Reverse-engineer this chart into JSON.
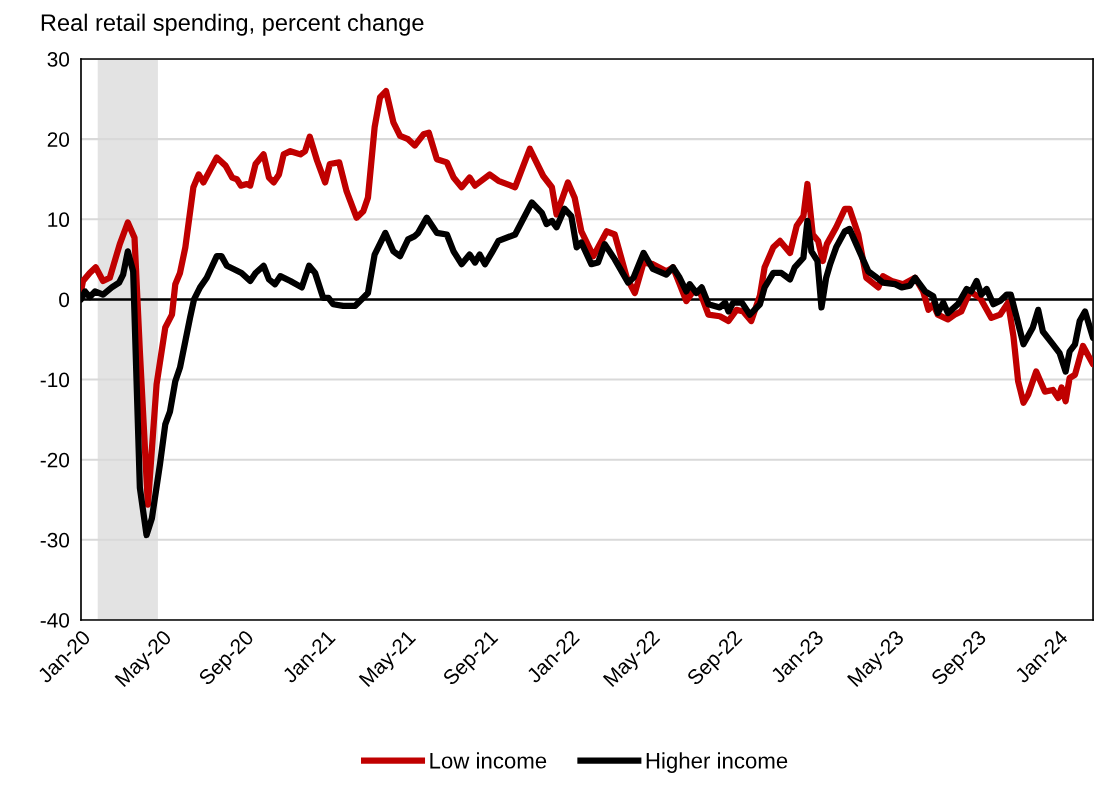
{
  "chart_data": {
    "type": "line",
    "title": "Real retail spending, percent change",
    "xlim": [
      "2020-01-01",
      "2024-02-22"
    ],
    "xticks": [
      {
        "value": "2020-01-01",
        "label": "Jan-20"
      },
      {
        "value": "2020-05-01",
        "label": "May-20"
      },
      {
        "value": "2020-09-01",
        "label": "Sep-20"
      },
      {
        "value": "2021-01-01",
        "label": "Jan-21"
      },
      {
        "value": "2021-05-01",
        "label": "May-21"
      },
      {
        "value": "2021-09-01",
        "label": "Sep-21"
      },
      {
        "value": "2022-01-01",
        "label": "Jan-22"
      },
      {
        "value": "2022-05-01",
        "label": "May-22"
      },
      {
        "value": "2022-09-01",
        "label": "Sep-22"
      },
      {
        "value": "2023-01-01",
        "label": "Jan-23"
      },
      {
        "value": "2023-05-01",
        "label": "May-23"
      },
      {
        "value": "2023-09-01",
        "label": "Sep-23"
      },
      {
        "value": "2024-01-01",
        "label": "Jan-24"
      }
    ],
    "ylim": [
      -40,
      30
    ],
    "yticks": [
      -40,
      -30,
      -20,
      -10,
      0,
      10,
      20,
      30
    ],
    "grid": "y",
    "legend": "bottom",
    "marker": "none",
    "line_style": "solid",
    "bands": [
      {
        "axis": "x",
        "from": "2020-01-26",
        "to": "2020-04-25",
        "color": "#e3e3e3"
      }
    ],
    "ref_lines": [
      {
        "axis": "y",
        "value": 0,
        "color": "#000000"
      }
    ],
    "series": [
      {
        "name": "Low income",
        "color": "#c00000",
        "x": [
          "2020-01-01",
          "2020-01-04",
          "2020-01-14",
          "2020-01-23",
          "2020-02-03",
          "2020-02-13",
          "2020-02-28",
          "2020-03-11",
          "2020-03-21",
          "2020-03-29",
          "2020-04-10",
          "2020-04-23",
          "2020-05-06",
          "2020-05-16",
          "2020-05-21",
          "2020-05-28",
          "2020-06-05",
          "2020-06-17",
          "2020-06-25",
          "2020-07-02",
          "2020-07-22",
          "2020-08-04",
          "2020-08-14",
          "2020-08-21",
          "2020-08-27",
          "2020-09-05",
          "2020-09-10",
          "2020-09-18",
          "2020-09-30",
          "2020-10-08",
          "2020-10-15",
          "2020-10-23",
          "2020-10-30",
          "2020-11-09",
          "2020-11-24",
          "2020-12-01",
          "2020-12-08",
          "2020-12-19",
          "2020-12-31",
          "2021-01-07",
          "2021-01-21",
          "2021-02-01",
          "2021-02-16",
          "2021-02-26",
          "2021-03-05",
          "2021-03-15",
          "2021-03-23",
          "2021-04-01",
          "2021-04-12",
          "2021-04-22",
          "2021-05-04",
          "2021-05-14",
          "2021-05-27",
          "2021-06-04",
          "2021-06-16",
          "2021-07-01",
          "2021-07-11",
          "2021-07-23",
          "2021-08-04",
          "2021-08-12",
          "2021-09-03",
          "2021-09-16",
          "2021-10-11",
          "2021-11-02",
          "2021-11-22",
          "2021-12-05",
          "2021-12-12",
          "2021-12-29",
          "2022-01-08",
          "2022-01-18",
          "2022-02-05",
          "2022-02-25",
          "2022-03-09",
          "2022-03-27",
          "2022-04-08",
          "2022-04-21",
          "2022-05-05",
          "2022-05-25",
          "2022-06-04",
          "2022-06-14",
          "2022-06-24",
          "2022-07-04",
          "2022-07-14",
          "2022-07-27",
          "2022-08-13",
          "2022-08-26",
          "2022-09-07",
          "2022-09-17",
          "2022-09-29",
          "2022-10-12",
          "2022-10-19",
          "2022-11-01",
          "2022-11-11",
          "2022-11-26",
          "2022-12-06",
          "2022-12-16",
          "2022-12-22",
          "2022-12-30",
          "2023-01-07",
          "2023-01-14",
          "2023-01-20",
          "2023-02-03",
          "2023-02-16",
          "2023-02-23",
          "2023-03-08",
          "2023-03-20",
          "2023-04-07",
          "2023-04-14",
          "2023-04-27",
          "2023-05-14",
          "2023-06-01",
          "2023-06-13",
          "2023-06-21",
          "2023-06-28",
          "2023-07-05",
          "2023-07-20",
          "2023-07-30",
          "2023-08-09",
          "2023-08-22",
          "2023-09-06",
          "2023-09-23",
          "2023-10-06",
          "2023-10-18",
          "2023-10-26",
          "2023-11-02",
          "2023-11-10",
          "2023-11-17",
          "2023-11-29",
          "2023-12-12",
          "2023-12-24",
          "2024-01-01",
          "2024-01-06",
          "2024-01-12",
          "2024-01-18",
          "2024-01-26",
          "2024-02-07",
          "2024-02-22"
        ],
        "values": [
          1.0,
          2.3,
          3.3,
          4.0,
          2.3,
          2.7,
          6.9,
          9.6,
          7.7,
          -6.5,
          -25.6,
          -10.6,
          -3.5,
          -1.9,
          1.9,
          3.3,
          6.5,
          14.0,
          15.6,
          14.6,
          17.7,
          16.7,
          15.2,
          15.0,
          14.2,
          14.4,
          14.2,
          16.9,
          18.1,
          15.2,
          14.6,
          15.6,
          18.1,
          18.5,
          18.1,
          18.5,
          20.3,
          17.3,
          14.6,
          16.9,
          17.1,
          13.5,
          10.2,
          11.0,
          12.7,
          21.5,
          25.2,
          26.0,
          22.1,
          20.4,
          20.0,
          19.2,
          20.6,
          20.8,
          17.5,
          17.1,
          15.2,
          14.0,
          15.2,
          14.2,
          15.6,
          14.8,
          14.0,
          18.8,
          15.4,
          14.0,
          10.6,
          14.6,
          12.7,
          8.5,
          5.4,
          8.5,
          8.1,
          2.7,
          0.8,
          4.6,
          4.4,
          3.5,
          4.0,
          1.9,
          -0.2,
          1.0,
          1.0,
          -1.9,
          -2.1,
          -2.7,
          -1.3,
          -1.5,
          -2.7,
          0.5,
          4.0,
          6.5,
          7.3,
          5.8,
          9.2,
          10.4,
          14.4,
          8.1,
          7.3,
          4.8,
          6.9,
          9.0,
          11.3,
          11.3,
          8.1,
          2.7,
          1.5,
          2.9,
          2.3,
          1.9,
          2.7,
          1.0,
          -1.3,
          -0.6,
          -1.9,
          -2.5,
          -1.9,
          -1.5,
          1.0,
          0.2,
          -2.3,
          -1.9,
          -0.4,
          -4.6,
          -10.2,
          -12.9,
          -11.9,
          -9.0,
          -11.5,
          -11.3,
          -12.3,
          -11.0,
          -12.7,
          -9.8,
          -9.4,
          -5.8,
          -8.1
        ]
      },
      {
        "name": "Higher income",
        "color": "#000000",
        "x": [
          "2020-01-01",
          "2020-01-07",
          "2020-01-14",
          "2020-01-22",
          "2020-02-03",
          "2020-02-16",
          "2020-02-27",
          "2020-03-04",
          "2020-03-11",
          "2020-03-19",
          "2020-03-29",
          "2020-04-08",
          "2020-04-16",
          "2020-04-28",
          "2020-05-06",
          "2020-05-13",
          "2020-05-21",
          "2020-05-28",
          "2020-06-05",
          "2020-06-12",
          "2020-06-18",
          "2020-06-27",
          "2020-07-07",
          "2020-07-22",
          "2020-07-29",
          "2020-08-06",
          "2020-08-16",
          "2020-08-28",
          "2020-09-10",
          "2020-09-18",
          "2020-09-30",
          "2020-10-08",
          "2020-10-17",
          "2020-10-25",
          "2020-11-09",
          "2020-11-26",
          "2020-12-07",
          "2020-12-16",
          "2020-12-28",
          "2021-01-05",
          "2021-01-12",
          "2021-01-27",
          "2021-02-14",
          "2021-02-26",
          "2021-03-05",
          "2021-03-15",
          "2021-03-31",
          "2021-04-12",
          "2021-04-22",
          "2021-05-04",
          "2021-05-14",
          "2021-05-19",
          "2021-06-01",
          "2021-06-16",
          "2021-07-01",
          "2021-07-11",
          "2021-07-23",
          "2021-08-04",
          "2021-08-12",
          "2021-08-19",
          "2021-08-27",
          "2021-09-06",
          "2021-09-16",
          "2021-10-11",
          "2021-11-05",
          "2021-11-20",
          "2021-11-27",
          "2021-12-05",
          "2021-12-12",
          "2021-12-24",
          "2022-01-03",
          "2022-01-11",
          "2022-01-18",
          "2022-02-02",
          "2022-02-12",
          "2022-02-22",
          "2022-03-09",
          "2022-03-29",
          "2022-04-06",
          "2022-04-21",
          "2022-05-05",
          "2022-05-25",
          "2022-06-04",
          "2022-06-14",
          "2022-06-24",
          "2022-06-29",
          "2022-07-09",
          "2022-07-17",
          "2022-07-27",
          "2022-08-13",
          "2022-08-21",
          "2022-08-26",
          "2022-09-02",
          "2022-09-15",
          "2022-09-27",
          "2022-10-12",
          "2022-10-19",
          "2022-11-01",
          "2022-11-13",
          "2022-11-26",
          "2022-12-03",
          "2022-12-16",
          "2022-12-22",
          "2022-12-28",
          "2023-01-06",
          "2023-01-12",
          "2023-01-19",
          "2023-01-25",
          "2023-02-03",
          "2023-02-16",
          "2023-02-23",
          "2023-03-05",
          "2023-03-23",
          "2023-04-02",
          "2023-04-14",
          "2023-05-02",
          "2023-05-12",
          "2023-05-24",
          "2023-06-01",
          "2023-06-16",
          "2023-06-28",
          "2023-07-05",
          "2023-07-13",
          "2023-07-20",
          "2023-08-04",
          "2023-08-17",
          "2023-08-24",
          "2023-09-01",
          "2023-09-08",
          "2023-09-16",
          "2023-09-26",
          "2023-10-06",
          "2023-10-16",
          "2023-10-22",
          "2023-10-31",
          "2023-11-10",
          "2023-11-24",
          "2023-12-02",
          "2023-12-09",
          "2023-12-22",
          "2024-01-03",
          "2024-01-12",
          "2024-01-18",
          "2024-01-26",
          "2024-02-02",
          "2024-02-10",
          "2024-02-22"
        ],
        "values": [
          0,
          1.0,
          0.3,
          1.0,
          0.6,
          1.5,
          2.1,
          3.1,
          6.0,
          3.5,
          -23.5,
          -29.4,
          -27.3,
          -20.6,
          -15.6,
          -14.0,
          -10.2,
          -8.5,
          -5.2,
          -2.3,
          0,
          1.5,
          2.7,
          5.4,
          5.4,
          4.2,
          3.8,
          3.3,
          2.3,
          3.3,
          4.2,
          2.5,
          1.9,
          2.9,
          2.3,
          1.5,
          4.2,
          3.3,
          0.2,
          0.2,
          -0.6,
          -0.8,
          -0.8,
          0.2,
          0.8,
          5.6,
          8.3,
          6.0,
          5.4,
          7.5,
          7.9,
          8.3,
          10.2,
          8.3,
          8.1,
          6.0,
          4.4,
          5.6,
          4.6,
          5.6,
          4.4,
          5.8,
          7.3,
          8.1,
          12.1,
          10.8,
          9.4,
          9.8,
          9.0,
          11.3,
          10.4,
          6.5,
          7.1,
          4.4,
          4.6,
          6.9,
          5.0,
          2.1,
          2.7,
          5.8,
          3.8,
          3.1,
          4.0,
          2.7,
          1.0,
          1.9,
          0.8,
          1.5,
          -0.6,
          -1.0,
          -0.4,
          -1.5,
          -0.4,
          -0.4,
          -1.9,
          -0.6,
          1.5,
          3.3,
          3.3,
          2.5,
          4.0,
          5.2,
          9.8,
          6.0,
          4.8,
          -1.0,
          2.7,
          4.4,
          6.5,
          8.5,
          8.8,
          6.9,
          3.5,
          2.9,
          2.1,
          1.9,
          1.5,
          1.7,
          2.7,
          1.0,
          0.4,
          -1.7,
          -0.4,
          -1.7,
          -0.6,
          1.3,
          1.0,
          2.3,
          0.6,
          1.3,
          -0.6,
          -0.2,
          0.6,
          0.6,
          -2.3,
          -5.6,
          -3.5,
          -1.3,
          -4.0,
          -5.4,
          -6.7,
          -9.0,
          -6.5,
          -5.6,
          -2.7,
          -1.5,
          -4.8
        ]
      }
    ]
  }
}
